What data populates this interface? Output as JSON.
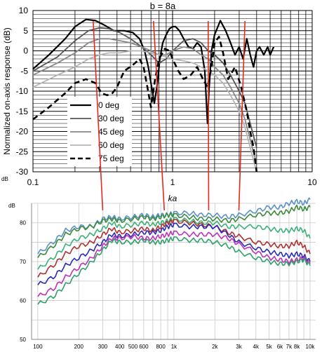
{
  "chart_data": [
    {
      "type": "line",
      "title": "b = 8a",
      "xlabel": "ka",
      "ylabel": "Normalized on-axis response (dB)",
      "x_scale": "log",
      "xlim": [
        0.1,
        10
      ],
      "ylim": [
        -30,
        10
      ],
      "x_ticks": [
        "0.1",
        "1",
        "10"
      ],
      "y_ticks": [
        "10",
        "5",
        "0",
        "-5",
        "-10",
        "-15",
        "-20",
        "-25",
        "-30"
      ],
      "y_unit_label": "dB",
      "grid": true,
      "legend_position": "lower-left",
      "series": [
        {
          "name": "0 deg",
          "color": "#000000",
          "style": "solid-thick",
          "x": [
            0.1,
            0.13,
            0.17,
            0.2,
            0.24,
            0.28,
            0.32,
            0.38,
            0.45,
            0.52,
            0.58,
            0.63,
            0.67,
            0.7,
            0.74,
            0.78,
            0.81,
            0.85,
            0.9,
            0.95,
            1.0,
            1.05,
            1.12,
            1.2,
            1.3,
            1.4,
            1.5,
            1.6,
            1.7,
            1.78,
            1.82,
            1.9,
            2.0,
            2.2,
            2.4,
            2.6,
            2.8,
            3.0,
            3.2,
            3.4,
            3.6,
            3.8,
            4.0,
            4.2,
            4.5,
            4.8,
            5.0,
            5.3
          ],
          "y": [
            -4.5,
            -1,
            3,
            6,
            7.8,
            7.5,
            6.5,
            5,
            5,
            4.5,
            3,
            0,
            -4,
            -8,
            -13,
            -8,
            -2,
            2,
            4,
            5.5,
            6,
            6,
            5,
            3,
            1,
            0.5,
            2,
            1,
            -5,
            -18,
            -10,
            0,
            4,
            7.5,
            5,
            2,
            -1,
            1,
            -2,
            3,
            -1,
            -4,
            0,
            1,
            -1,
            1,
            -1,
            1
          ]
        },
        {
          "name": "30 deg",
          "color": "#555555",
          "style": "solid-medium",
          "x": [
            0.1,
            0.15,
            0.2,
            0.25,
            0.3,
            0.35,
            0.42,
            0.5,
            0.6,
            0.7,
            0.8,
            0.9,
            1.0,
            1.2,
            1.4,
            1.6,
            1.8,
            2.0,
            2.3,
            2.6,
            3.0,
            3.3,
            3.6,
            4.0
          ],
          "y": [
            -5,
            -1.5,
            2.5,
            5,
            5.7,
            5.5,
            4.5,
            3,
            1,
            -1,
            -3,
            -2,
            0,
            2.5,
            3,
            2,
            0,
            -1,
            -3,
            -6,
            -10,
            -13,
            -18,
            -24
          ]
        },
        {
          "name": "45 deg",
          "color": "#888888",
          "style": "solid-medium",
          "x": [
            0.1,
            0.15,
            0.2,
            0.25,
            0.3,
            0.35,
            0.42,
            0.5,
            0.6,
            0.7,
            0.8,
            0.9,
            1.0,
            1.2,
            1.4,
            1.6,
            1.8,
            2.0,
            2.3,
            2.6,
            3.0,
            3.3,
            3.6,
            4.0
          ],
          "y": [
            -6,
            -3,
            -0.5,
            2,
            3,
            3,
            2.5,
            2,
            1,
            0,
            -1,
            -1,
            0,
            1,
            0.5,
            -1,
            -2,
            -4,
            -6,
            -9,
            -13,
            -17,
            -22,
            -28
          ]
        },
        {
          "name": "60 deg",
          "color": "#b4b4b4",
          "style": "solid-medium",
          "x": [
            0.1,
            0.15,
            0.2,
            0.25,
            0.3,
            0.35,
            0.42,
            0.5,
            0.6,
            0.7,
            0.8,
            0.9,
            1.0,
            1.2,
            1.4,
            1.6,
            1.8,
            2.0,
            2.3,
            2.6,
            3.0,
            3.3,
            3.6,
            4.0
          ],
          "y": [
            -9,
            -6,
            -4,
            -2,
            -1,
            -0.5,
            -0.5,
            0,
            0,
            -0.5,
            -1,
            -1.5,
            -2,
            -2.5,
            -3,
            -4,
            -5,
            -6,
            -8,
            -11,
            -15,
            -19,
            -24,
            -30
          ]
        },
        {
          "name": "75 deg",
          "color": "#000000",
          "style": "dashed-thick",
          "x": [
            0.1,
            0.13,
            0.17,
            0.2,
            0.24,
            0.28,
            0.31,
            0.34,
            0.37,
            0.4,
            0.45,
            0.52,
            0.58,
            0.62,
            0.66,
            0.7,
            0.75,
            0.8,
            0.88,
            0.95,
            1.0,
            1.1,
            1.2,
            1.35,
            1.5,
            1.65,
            1.78,
            1.9,
            2.0,
            2.15,
            2.3,
            2.5,
            2.8,
            3.1,
            3.4,
            3.6,
            3.8,
            4.0
          ],
          "y": [
            -17,
            -14,
            -10.5,
            -8,
            -7,
            -8,
            -10.5,
            -11,
            -10.5,
            -9,
            -5,
            -3.5,
            -2,
            -4,
            -9,
            -14,
            -7,
            -2,
            0.5,
            0,
            -2,
            -5,
            -7,
            -6,
            -4,
            -7,
            -9,
            -4,
            2,
            3.5,
            -0.5,
            -7,
            -4,
            -9,
            -15,
            -20,
            -24,
            -30
          ]
        }
      ],
      "markers": [
        {
          "x": 0.27,
          "label": ""
        },
        {
          "x": 0.73,
          "label": ""
        },
        {
          "x": 1.8,
          "label": ""
        },
        {
          "x": 3.3,
          "label": ""
        }
      ]
    },
    {
      "type": "line",
      "title": "",
      "xlabel": "",
      "ylabel": "",
      "y_unit_label": "dB",
      "x_scale": "log",
      "xlim": [
        90,
        11000
      ],
      "ylim": [
        50,
        85
      ],
      "x_ticks": [
        {
          "v": 100,
          "label": "100"
        },
        {
          "v": 200,
          "label": "200"
        },
        {
          "v": 300,
          "label": "300"
        },
        {
          "v": 400,
          "label": "400"
        },
        {
          "v": 500,
          "label": "500"
        },
        {
          "v": 600,
          "label": "600"
        },
        {
          "v": 800,
          "label": "800"
        },
        {
          "v": 1000,
          "label": "1k"
        },
        {
          "v": 2000,
          "label": "2k"
        },
        {
          "v": 3000,
          "label": "3k"
        },
        {
          "v": 4000,
          "label": "4k"
        },
        {
          "v": 5000,
          "label": "5k"
        },
        {
          "v": 6000,
          "label": "6k"
        },
        {
          "v": 7000,
          "label": "7k"
        },
        {
          "v": 8000,
          "label": "8k"
        },
        {
          "v": 10000,
          "label": "10k"
        }
      ],
      "y_ticks": [
        "80",
        "70",
        "60",
        "50"
      ],
      "grid": true,
      "series": [
        {
          "color": "#5a8fc8",
          "x": [
            100,
            130,
            160,
            200,
            250,
            300,
            350,
            400,
            500,
            600,
            700,
            800,
            900,
            1000,
            1300,
            1600,
            2000,
            2500,
            3000,
            4000,
            5000,
            6000,
            7000,
            8000,
            9000,
            10000
          ],
          "y": [
            72,
            75,
            78,
            79,
            79,
            81,
            81.5,
            81,
            81.5,
            82,
            81.5,
            82,
            82,
            82.5,
            82.5,
            82,
            82,
            81.5,
            82,
            83,
            84,
            84,
            85,
            85.5,
            85,
            86
          ]
        },
        {
          "color": "#3a8a3a",
          "x": [
            100,
            130,
            160,
            200,
            250,
            300,
            350,
            400,
            500,
            600,
            700,
            800,
            900,
            1000,
            1300,
            1600,
            2000,
            2500,
            3000,
            4000,
            5000,
            6000,
            7000,
            8000,
            9000,
            10000
          ],
          "y": [
            71,
            74,
            77,
            78.5,
            79,
            80.5,
            81,
            80.5,
            81,
            81.5,
            81,
            81.5,
            82,
            82,
            81.5,
            81,
            81,
            80.5,
            81,
            82,
            82.5,
            82.5,
            83,
            84,
            83.5,
            84
          ]
        },
        {
          "color": "#3cb07a",
          "x": [
            100,
            130,
            160,
            200,
            250,
            300,
            350,
            400,
            500,
            600,
            700,
            800,
            900,
            1000,
            1300,
            1600,
            2000,
            2500,
            3000,
            4000,
            5000,
            6000,
            7000,
            8000,
            9000,
            10000
          ],
          "y": [
            68,
            71,
            74,
            76,
            77,
            78.5,
            80,
            79,
            79.5,
            80,
            79.5,
            80,
            80.5,
            81,
            80.5,
            80,
            80,
            79,
            79,
            79,
            78.5,
            78,
            78,
            78.5,
            78,
            76
          ]
        },
        {
          "color": "#b03030",
          "x": [
            100,
            130,
            160,
            200,
            250,
            300,
            350,
            400,
            500,
            600,
            700,
            800,
            900,
            1000,
            1300,
            1600,
            2000,
            2500,
            3000,
            4000,
            5000,
            6000,
            7000,
            8000,
            9000,
            10000
          ],
          "y": [
            66,
            69,
            72,
            74,
            75,
            77,
            78.5,
            77.5,
            78,
            78.5,
            78,
            79,
            80,
            80.5,
            80,
            79.5,
            79,
            77.5,
            76.5,
            75,
            74.5,
            74,
            74,
            75,
            74,
            72
          ]
        },
        {
          "color": "#2a2ab8",
          "x": [
            100,
            130,
            160,
            200,
            250,
            300,
            350,
            400,
            500,
            600,
            700,
            800,
            900,
            1000,
            1300,
            1600,
            2000,
            2500,
            3000,
            4000,
            5000,
            6000,
            7000,
            8000,
            9000,
            10000
          ],
          "y": [
            64,
            66,
            69,
            71,
            73,
            75,
            77,
            76.5,
            77,
            77.5,
            77.5,
            78,
            79,
            79.5,
            79,
            79,
            79,
            77,
            75,
            73.5,
            72.5,
            72,
            71.5,
            72,
            71.5,
            70
          ]
        },
        {
          "color": "#c030b8",
          "x": [
            100,
            130,
            160,
            200,
            250,
            300,
            350,
            400,
            500,
            600,
            700,
            800,
            900,
            1000,
            1300,
            1600,
            2000,
            2500,
            3000,
            4000,
            5000,
            6000,
            7000,
            8000,
            9000,
            10000
          ],
          "y": [
            61,
            63,
            66,
            68.5,
            71,
            74,
            76,
            76,
            76.5,
            76,
            76,
            76.5,
            77,
            77.5,
            77,
            77,
            77,
            76,
            74.5,
            72.5,
            71,
            70.5,
            70,
            70.5,
            71,
            69.5
          ]
        },
        {
          "color": "#2ea06a",
          "x": [
            100,
            130,
            160,
            200,
            250,
            300,
            350,
            400,
            500,
            600,
            700,
            800,
            900,
            1000,
            1300,
            1600,
            2000,
            2500,
            3000,
            4000,
            5000,
            6000,
            7000,
            8000,
            9000,
            10000
          ],
          "y": [
            59,
            61,
            64,
            67,
            70,
            73,
            75.5,
            75,
            75,
            75.5,
            75,
            75,
            75.5,
            76,
            75.5,
            75.5,
            75,
            74,
            72.5,
            71,
            70,
            69.5,
            69.5,
            70,
            70.5,
            69
          ]
        }
      ]
    }
  ],
  "connectors": [
    {
      "from_x": 0.27,
      "to_f": 300
    },
    {
      "from_x": 0.73,
      "to_f": 850
    },
    {
      "from_x": 1.8,
      "to_f": 1800
    },
    {
      "from_x": 3.3,
      "to_f": 3000
    }
  ],
  "colors": {
    "connector": "#e8281e",
    "grid": "#000000",
    "bottom_grid": "#c8c8c8"
  }
}
